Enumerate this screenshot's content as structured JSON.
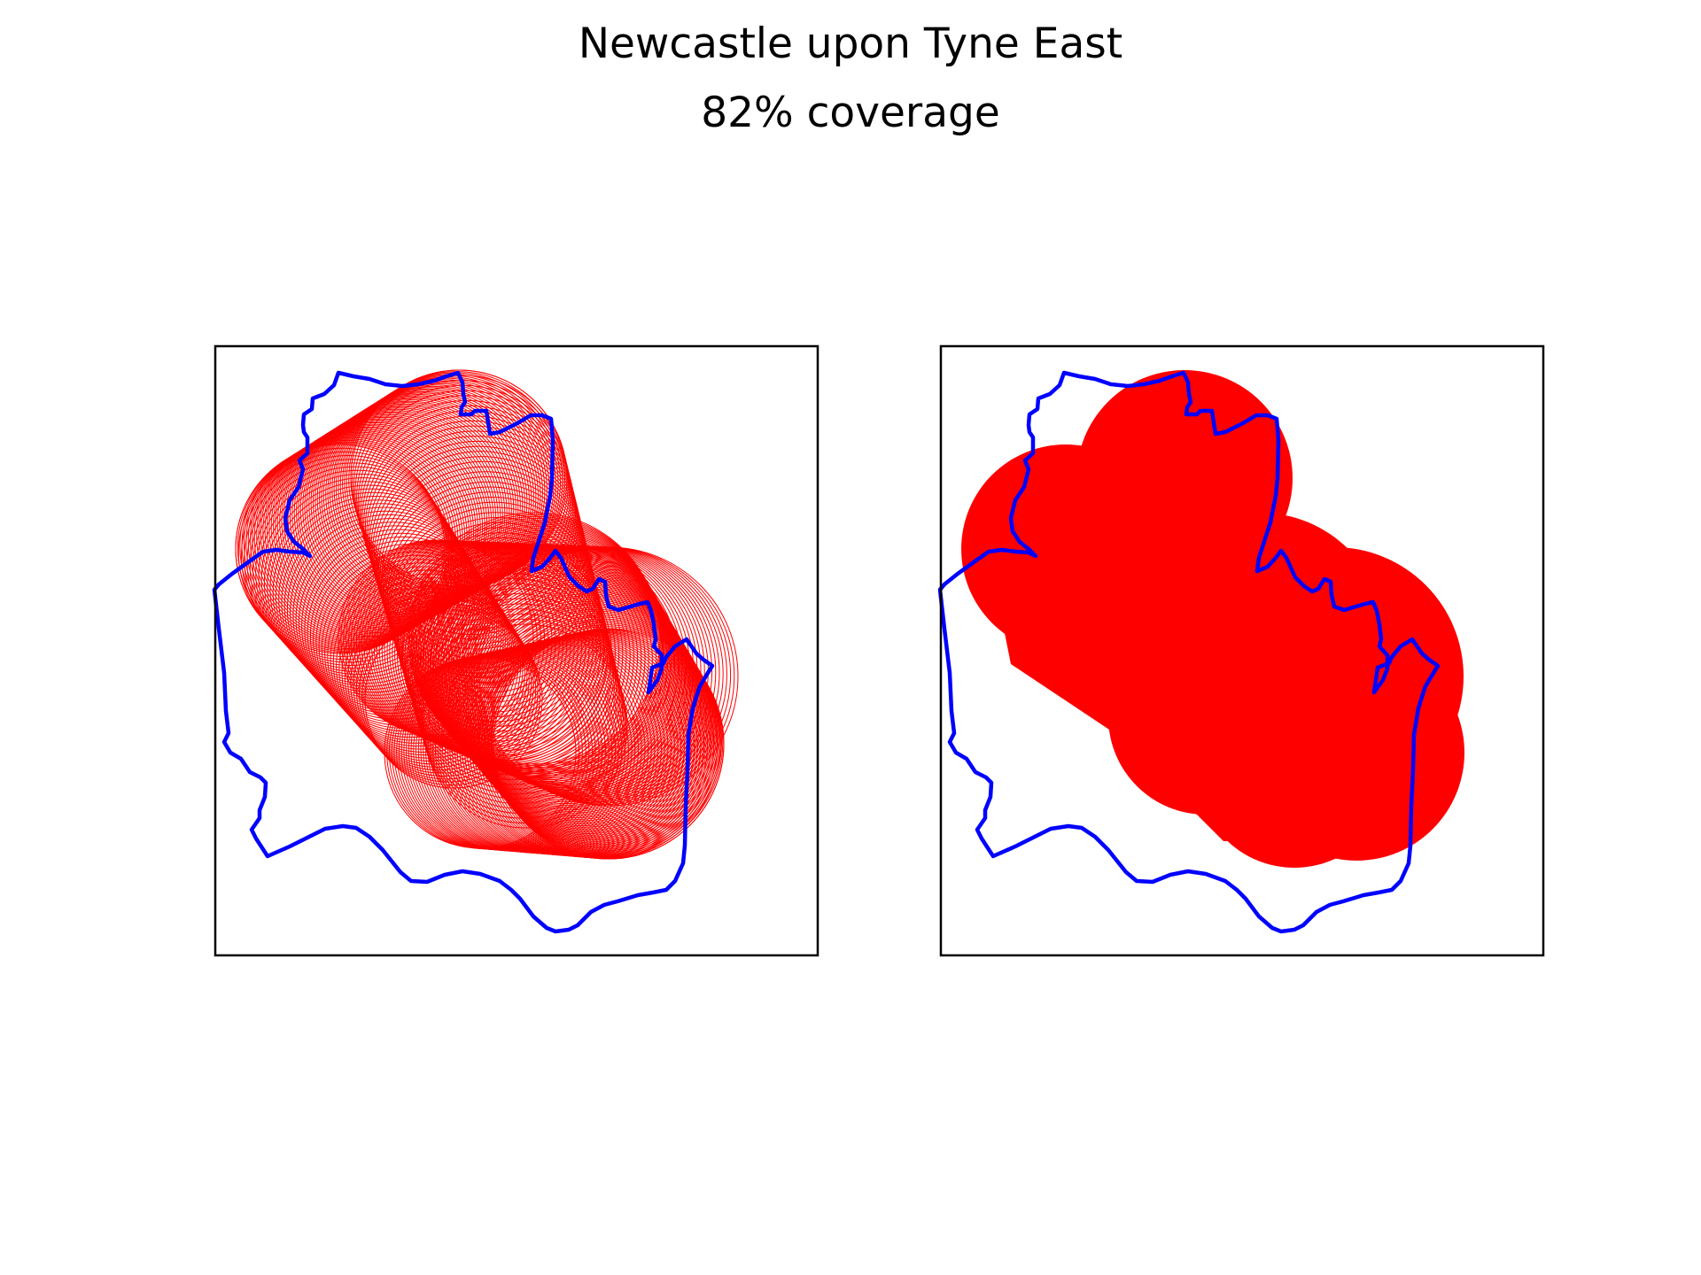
{
  "figure": {
    "title": "Newcastle upon Tyne East",
    "subtitle": "82% coverage"
  },
  "colors": {
    "boundary": "#0000ff",
    "coverage": "#ff0000",
    "frame": "#000000",
    "background": "#ffffff"
  },
  "panels": [
    {
      "name": "outline-coverage",
      "style": "circle-outlines"
    },
    {
      "name": "filled-coverage",
      "style": "filled"
    }
  ]
}
